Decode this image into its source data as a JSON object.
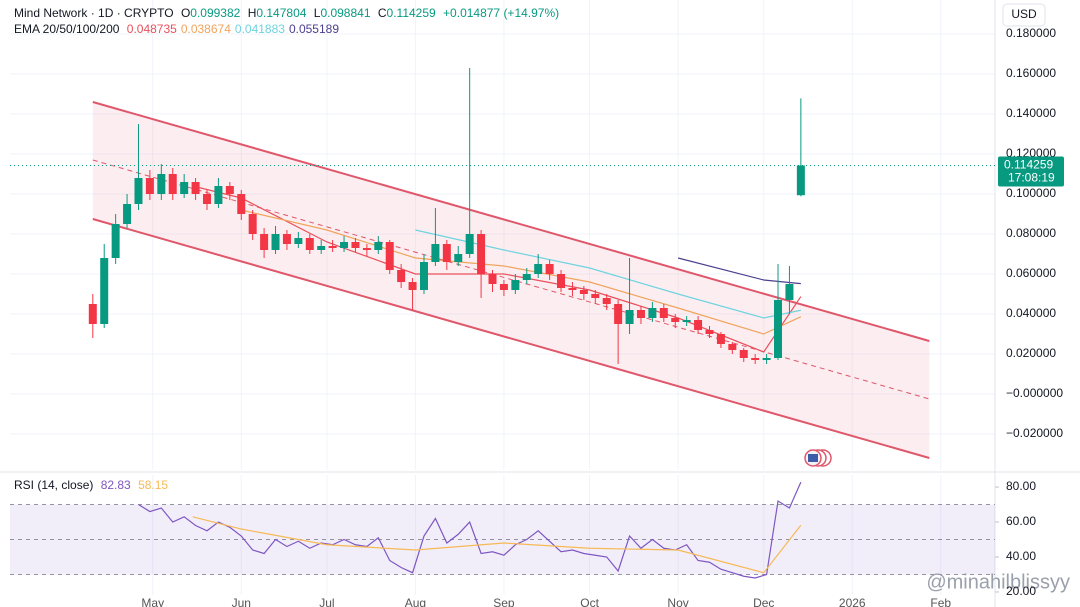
{
  "chart_data": [
    {
      "type": "candlestick",
      "title": "Mind Network · 1D · CRYPTO",
      "ohlc_labels": [
        "O",
        "H",
        "L",
        "C"
      ],
      "change": "+0.014877 (+14.97%)",
      "currency": "USD",
      "countdown": "17:08:19",
      "watermark": "@minahilblissyy",
      "up_color": "#089981",
      "down_color": "#f23645",
      "x": [
        "2025-04-10",
        "2025-04-14",
        "2025-04-18",
        "2025-04-22",
        "2025-04-26",
        "2025-04-30",
        "2025-05-04",
        "2025-05-08",
        "2025-05-12",
        "2025-05-16",
        "2025-05-20",
        "2025-05-24",
        "2025-05-28",
        "2025-06-01",
        "2025-06-05",
        "2025-06-09",
        "2025-06-13",
        "2025-06-17",
        "2025-06-21",
        "2025-06-25",
        "2025-06-29",
        "2025-07-03",
        "2025-07-07",
        "2025-07-11",
        "2025-07-15",
        "2025-07-19",
        "2025-07-23",
        "2025-07-27",
        "2025-07-31",
        "2025-08-04",
        "2025-08-08",
        "2025-08-12",
        "2025-08-16",
        "2025-08-20",
        "2025-08-24",
        "2025-08-28",
        "2025-09-01",
        "2025-09-05",
        "2025-09-09",
        "2025-09-13",
        "2025-09-17",
        "2025-09-21",
        "2025-09-25",
        "2025-09-29",
        "2025-10-03",
        "2025-10-07",
        "2025-10-11",
        "2025-10-15",
        "2025-10-19",
        "2025-10-23",
        "2025-10-27",
        "2025-10-31",
        "2025-11-04",
        "2025-11-08",
        "2025-11-12",
        "2025-11-16",
        "2025-11-20",
        "2025-11-24",
        "2025-11-28",
        "2025-12-02",
        "2025-12-06",
        "2025-12-10",
        "2025-12-14"
      ],
      "open": [
        0.045,
        0.035,
        0.068,
        0.085,
        0.095,
        0.108,
        0.1,
        0.11,
        0.1,
        0.106,
        0.1,
        0.095,
        0.104,
        0.1,
        0.09,
        0.08,
        0.072,
        0.08,
        0.075,
        0.078,
        0.072,
        0.074,
        0.073,
        0.076,
        0.073,
        0.072,
        0.076,
        0.062,
        0.056,
        0.052,
        0.066,
        0.075,
        0.066,
        0.07,
        0.08,
        0.06,
        0.055,
        0.052,
        0.057,
        0.06,
        0.065,
        0.06,
        0.053,
        0.052,
        0.05,
        0.048,
        0.045,
        0.035,
        0.042,
        0.038,
        0.043,
        0.038,
        0.036,
        0.037,
        0.032,
        0.03,
        0.025,
        0.022,
        0.018,
        0.017,
        0.018,
        0.047,
        0.099382
      ],
      "high": [
        0.05,
        0.075,
        0.09,
        0.1,
        0.135,
        0.112,
        0.115,
        0.113,
        0.11,
        0.108,
        0.102,
        0.108,
        0.106,
        0.102,
        0.092,
        0.083,
        0.084,
        0.082,
        0.081,
        0.08,
        0.077,
        0.077,
        0.079,
        0.078,
        0.075,
        0.079,
        0.077,
        0.065,
        0.058,
        0.07,
        0.093,
        0.077,
        0.074,
        0.163,
        0.082,
        0.062,
        0.057,
        0.06,
        0.063,
        0.07,
        0.067,
        0.062,
        0.056,
        0.054,
        0.052,
        0.05,
        0.047,
        0.068,
        0.044,
        0.046,
        0.045,
        0.04,
        0.039,
        0.039,
        0.034,
        0.031,
        0.026,
        0.023,
        0.02,
        0.02,
        0.065,
        0.064,
        0.147804
      ],
      "low": [
        0.028,
        0.033,
        0.065,
        0.083,
        0.092,
        0.097,
        0.097,
        0.097,
        0.098,
        0.097,
        0.092,
        0.093,
        0.097,
        0.087,
        0.077,
        0.068,
        0.07,
        0.072,
        0.073,
        0.07,
        0.07,
        0.071,
        0.071,
        0.071,
        0.069,
        0.07,
        0.06,
        0.053,
        0.042,
        0.05,
        0.064,
        0.062,
        0.064,
        0.068,
        0.048,
        0.051,
        0.049,
        0.05,
        0.055,
        0.058,
        0.057,
        0.051,
        0.049,
        0.047,
        0.045,
        0.042,
        0.015,
        0.03,
        0.035,
        0.036,
        0.036,
        0.033,
        0.034,
        0.03,
        0.028,
        0.023,
        0.02,
        0.016,
        0.015,
        0.015,
        0.017,
        0.04,
        0.098841
      ],
      "close": [
        0.035,
        0.068,
        0.085,
        0.095,
        0.108,
        0.1,
        0.11,
        0.1,
        0.106,
        0.1,
        0.095,
        0.104,
        0.1,
        0.09,
        0.08,
        0.072,
        0.08,
        0.075,
        0.078,
        0.072,
        0.074,
        0.073,
        0.076,
        0.073,
        0.072,
        0.076,
        0.062,
        0.056,
        0.052,
        0.066,
        0.075,
        0.066,
        0.07,
        0.08,
        0.06,
        0.055,
        0.052,
        0.057,
        0.06,
        0.065,
        0.06,
        0.053,
        0.052,
        0.05,
        0.048,
        0.045,
        0.035,
        0.042,
        0.038,
        0.043,
        0.038,
        0.036,
        0.037,
        0.032,
        0.03,
        0.025,
        0.022,
        0.018,
        0.017,
        0.018,
        0.047,
        0.055,
        0.114259
      ],
      "ylim": [
        -0.038,
        0.197
      ],
      "yticks": [
        {
          "value": 0.18,
          "label": "0.180000"
        },
        {
          "value": 0.16,
          "label": "0.160000"
        },
        {
          "value": 0.14,
          "label": "0.140000"
        },
        {
          "value": 0.12,
          "label": "0.120000"
        },
        {
          "value": 0.1,
          "label": "0.100000"
        },
        {
          "value": 0.08,
          "label": "0.080000"
        },
        {
          "value": 0.06,
          "label": "0.060000"
        },
        {
          "value": 0.04,
          "label": "0.040000"
        },
        {
          "value": 0.02,
          "label": "0.020000"
        },
        {
          "value": 0,
          "label": "−0.000000"
        },
        {
          "value": -0.02,
          "label": "−0.020000"
        }
      ],
      "xlim": [
        "2025-03-12",
        "2026-02-20"
      ],
      "xticks": [
        {
          "value": "2025-05-01",
          "label": "May"
        },
        {
          "value": "2025-06-01",
          "label": "Jun"
        },
        {
          "value": "2025-07-01",
          "label": "Jul"
        },
        {
          "value": "2025-08-01",
          "label": "Aug"
        },
        {
          "value": "2025-09-01",
          "label": "Sep"
        },
        {
          "value": "2025-10-01",
          "label": "Oct"
        },
        {
          "value": "2025-11-01",
          "label": "Nov"
        },
        {
          "value": "2025-12-01",
          "label": "Dec"
        },
        {
          "value": "2026-01-01",
          "label": "2026"
        },
        {
          "value": "2026-02-01",
          "label": "Feb"
        }
      ],
      "grid": true,
      "indicator": {
        "name": "EMA 20/50/100/200",
        "x": [
          "2025-05-15",
          "2025-06-01",
          "2025-07-01",
          "2025-08-01",
          "2025-09-01",
          "2025-10-01",
          "2025-11-01",
          "2025-12-01",
          "2025-12-14"
        ],
        "series": [
          {
            "color": "#e8505b",
            "values": [
              0.104,
              0.098,
              0.076,
              0.06,
              0.06,
              0.052,
              0.038,
              0.021,
              0.048735
            ]
          },
          {
            "color": "#f0a45d",
            "values": [
              null,
              0.092,
              0.082,
              0.068,
              0.064,
              0.056,
              0.043,
              0.03,
              0.038674
            ]
          },
          {
            "color": "#6fd3e0",
            "values": [
              null,
              null,
              null,
              0.082,
              0.072,
              0.063,
              0.05,
              0.038,
              0.041883
            ]
          },
          {
            "color": "#4b3f8f",
            "values": [
              null,
              null,
              null,
              null,
              null,
              null,
              0.068,
              0.057,
              0.055189
            ]
          }
        ]
      },
      "channel": {
        "x": [
          "2025-04-10",
          "2026-01-28"
        ],
        "upper": [
          0.146,
          0.0265
        ],
        "middle": [
          0.117,
          -0.0025
        ],
        "lower": [
          0.0875,
          -0.032
        ],
        "color": "#e0566a"
      }
    },
    {
      "type": "line",
      "title": "RSI (14, close)",
      "color": "#7e57c2",
      "values": [
        null,
        null,
        null,
        null,
        70,
        66,
        68,
        60,
        63,
        58,
        55,
        60,
        57,
        52,
        44,
        42,
        50,
        46,
        49,
        45,
        48,
        47,
        50,
        47,
        46,
        51,
        38,
        34,
        31,
        52,
        62,
        48,
        53,
        60,
        42,
        43,
        41,
        47,
        50,
        55,
        49,
        43,
        44,
        42,
        41,
        40,
        32,
        52,
        45,
        50,
        45,
        44,
        47,
        38,
        37,
        33,
        31,
        29,
        28,
        30,
        72,
        68,
        82.83
      ],
      "ma": {
        "color": "#f7b955",
        "x": [
          "2025-05-15",
          "2025-06-01",
          "2025-07-01",
          "2025-08-01",
          "2025-09-01",
          "2025-10-01",
          "2025-11-01",
          "2025-12-01",
          "2025-12-14"
        ],
        "values": [
          63,
          56,
          47,
          44,
          48,
          45,
          44,
          31,
          58.15
        ]
      },
      "levels": [
        70,
        50,
        30
      ],
      "ylim": [
        11.4,
        86.9
      ],
      "yticks": [
        {
          "value": 80,
          "label": "80.00"
        },
        {
          "value": 60,
          "label": "60.00"
        },
        {
          "value": 40,
          "label": "40.00"
        },
        {
          "value": 20,
          "label": "20.00"
        }
      ]
    }
  ]
}
